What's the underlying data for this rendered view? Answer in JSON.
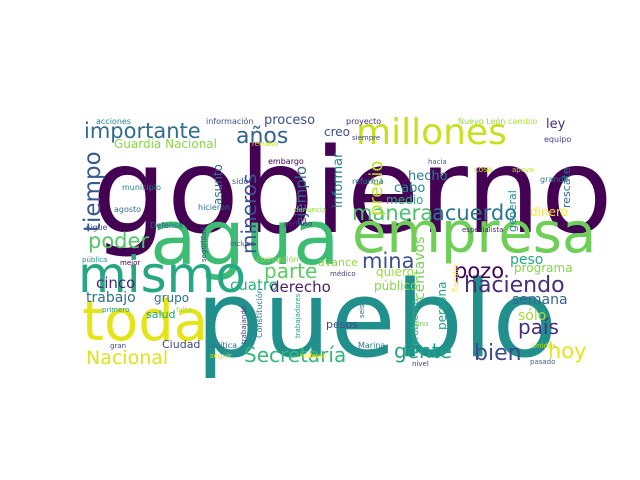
{
  "words": [
    {
      "text": "gobierno",
      "color": "#440154"
    },
    {
      "text": "pueblo",
      "color": "#21908d"
    },
    {
      "text": "agua",
      "color": "#3fbc73"
    },
    {
      "text": "empresa",
      "color": "#6ece58"
    },
    {
      "text": "toda",
      "color": "#e4e419"
    },
    {
      "text": "mismo",
      "color": "#26a784"
    },
    {
      "text": "millones",
      "color": "#c8e020"
    },
    {
      "text": "importante",
      "color": "#2f6c8e"
    },
    {
      "text": "años",
      "color": "#33628d"
    },
    {
      "text": "proceso",
      "color": "#3d4e8a"
    },
    {
      "text": "tiempo",
      "color": "#38598c"
    },
    {
      "text": "poder",
      "color": "#52c569"
    },
    {
      "text": "manera",
      "color": "#4ac16d"
    },
    {
      "text": "acuerdo",
      "color": "#2b758e"
    },
    {
      "text": "mina",
      "color": "#3b518b"
    },
    {
      "text": "parte",
      "color": "#5ec962"
    },
    {
      "text": "haciendo",
      "color": "#472c7a"
    },
    {
      "text": "pozo",
      "color": "#440256"
    },
    {
      "text": "país",
      "color": "#46307e"
    },
    {
      "text": "bien",
      "color": "#3e4989"
    },
    {
      "text": "hoy",
      "color": "#e5e419"
    },
    {
      "text": "gente",
      "color": "#1fa088"
    },
    {
      "text": "Secretaría",
      "color": "#35b779"
    },
    {
      "text": "Nacional",
      "color": "#dde318"
    },
    {
      "text": "trabajo",
      "color": "#2e6e8e"
    },
    {
      "text": "cinco",
      "color": "#482677"
    },
    {
      "text": "cuatro",
      "color": "#2ab07f"
    },
    {
      "text": "derecho",
      "color": "#481f70"
    },
    {
      "text": "mineros",
      "color": "#3b528b"
    },
    {
      "text": "ejemplo",
      "color": "#31688e"
    },
    {
      "text": "precio",
      "color": "#bddf26"
    },
    {
      "text": "informar",
      "color": "#228b8d"
    },
    {
      "text": "centavos",
      "color": "#7ad151"
    },
    {
      "text": "semana",
      "color": "#32648e"
    },
    {
      "text": "sólo",
      "color": "#a5db36"
    },
    {
      "text": "Guardia Nacional",
      "color": "#8bd646"
    },
    {
      "text": "grupo",
      "color": "#2c728e"
    },
    {
      "text": "creo",
      "color": "#3e4c8a"
    },
    {
      "text": "peso",
      "color": "#22a785"
    },
    {
      "text": "programa",
      "color": "#86d549"
    },
    {
      "text": "rescate",
      "color": "#2d718e"
    },
    {
      "text": "dinero",
      "color": "#fde725"
    },
    {
      "text": "hecho",
      "color": "#277f8e"
    },
    {
      "text": "cabo",
      "color": "#24868e"
    },
    {
      "text": "medio",
      "color": "#2ab07f"
    },
    {
      "text": "quiero",
      "color": "#9bd93c"
    },
    {
      "text": "público",
      "color": "#86d549"
    },
    {
      "text": "persona",
      "color": "#20a486"
    },
    {
      "text": "ley",
      "color": "#472d7b"
    },
    {
      "text": "general",
      "color": "#228c8d"
    },
    {
      "text": "asunto",
      "color": "#2c718e"
    },
    {
      "text": "salud",
      "color": "#1fa187"
    },
    {
      "text": "Ciudad",
      "color": "#404688"
    },
    {
      "text": "pesos",
      "color": "#3c4f8a"
    },
    {
      "text": "avance",
      "color": "#8fd744"
    },
    {
      "text": "acciones",
      "color": "#26818e"
    },
    {
      "text": "información",
      "color": "#3b518b"
    },
    {
      "text": "proyecto",
      "color": "#472c7a"
    },
    {
      "text": "Nuevo León",
      "color": "#95d840"
    },
    {
      "text": "cambio",
      "color": "#addc30"
    },
    {
      "text": "equipo",
      "color": "#404688"
    },
    {
      "text": "recurso",
      "color": "#cae11f"
    },
    {
      "text": "siempre",
      "color": "#3e4a89"
    },
    {
      "text": "embargo",
      "color": "#440154"
    },
    {
      "text": "sido",
      "color": "#3b528b"
    },
    {
      "text": "hacia",
      "color": "#355f8d"
    },
    {
      "text": "cosa",
      "color": "#d2e21b"
    },
    {
      "text": "apoyo",
      "color": "#b5de2b"
    },
    {
      "text": "grande",
      "color": "#2d718e"
    },
    {
      "text": "reforma",
      "color": "#2a788e"
    },
    {
      "text": "municipio",
      "color": "#26828e"
    },
    {
      "text": "agosto",
      "color": "#2c728e"
    },
    {
      "text": "hicieron",
      "color": "#2c728e"
    },
    {
      "text": "denuncia",
      "color": "#8fd744"
    },
    {
      "text": "Defensa",
      "color": "#31668e"
    },
    {
      "text": "seguridad",
      "color": "#3e4a89"
    },
    {
      "text": "permiso",
      "color": "#472f7d"
    },
    {
      "text": "especialista",
      "color": "#482475"
    },
    {
      "text": "sigue",
      "color": "#3a548c"
    },
    {
      "text": "incluso",
      "color": "#3e4a89"
    },
    {
      "text": "pública",
      "color": "#20928c"
    },
    {
      "text": "mejor",
      "color": "#440154"
    },
    {
      "text": "corrupción",
      "color": "#95d840"
    },
    {
      "text": "médico",
      "color": "#414487"
    },
    {
      "text": "fiscalía",
      "color": "#fde725"
    },
    {
      "text": "primero",
      "color": "#1f9e89"
    },
    {
      "text": "falta",
      "color": "#9fda3a"
    },
    {
      "text": "Constitución",
      "color": "#29798e"
    },
    {
      "text": "trabajadores",
      "color": "#20a386"
    },
    {
      "text": "seis",
      "color": "#2d708e"
    },
    {
      "text": "problema",
      "color": "#2db27d"
    },
    {
      "text": "sino",
      "color": "#6ece58"
    },
    {
      "text": "gran",
      "color": "#3e4989"
    },
    {
      "text": "trabajando",
      "color": "#453581"
    },
    {
      "text": "política",
      "color": "#2d708e"
    },
    {
      "text": "Marina",
      "color": "#2c738e"
    },
    {
      "text": "Unidos",
      "color": "#b5de2b"
    },
    {
      "text": "pasado",
      "color": "#31688e"
    },
    {
      "text": "seguir",
      "color": "#d8e219"
    },
    {
      "text": "todavía",
      "color": "#fde725"
    },
    {
      "text": "nivel",
      "color": "#46337f"
    }
  ]
}
